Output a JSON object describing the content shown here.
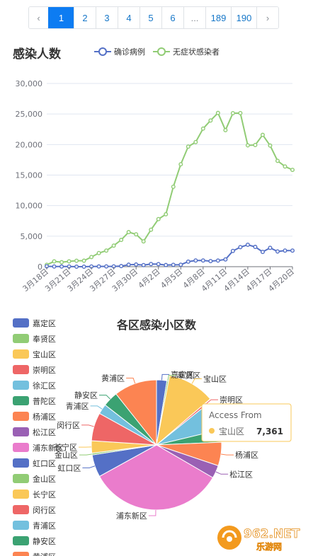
{
  "pagination": {
    "prev": "‹",
    "next": "›",
    "items": [
      "1",
      "2",
      "3",
      "4",
      "5",
      "6",
      "...",
      "189",
      "190"
    ],
    "active": "1"
  },
  "line_chart": {
    "title": "感染人数",
    "legend": [
      "确诊病例",
      "无症状感染者"
    ],
    "colors": {
      "confirmed": "#5470c6",
      "asymptomatic": "#91cc75"
    }
  },
  "pie_chart": {
    "title": "各区感染小区数",
    "legend": [
      "嘉定区",
      "奉贤区",
      "宝山区",
      "崇明区",
      "徐汇区",
      "普陀区",
      "杨浦区",
      "松江区",
      "浦东新区",
      "虹口区",
      "金山区",
      "长宁区",
      "闵行区",
      "青浦区",
      "静安区",
      "黄浦区"
    ],
    "tooltip": {
      "header": "Access From",
      "name": "宝山区",
      "value": "7,361"
    }
  },
  "chart_data": [
    {
      "type": "line",
      "title": "感染人数",
      "x": [
        "3月18日",
        "3月19日",
        "3月20日",
        "3月21日",
        "3月22日",
        "3月23日",
        "3月24日",
        "3月25日",
        "3月26日",
        "3月27日",
        "3月28日",
        "3月29日",
        "3月30日",
        "3月31日",
        "4月1日",
        "4月2日",
        "4月3日",
        "4月4日",
        "4月5日",
        "4月6日",
        "4月7日",
        "4月8日",
        "4月9日",
        "4月10日",
        "4月11日",
        "4月12日",
        "4月13日",
        "4月14日",
        "4月15日",
        "4月16日",
        "4月17日",
        "4月18日",
        "4月19日",
        "4月20日"
      ],
      "xticks": [
        "3月18日",
        "3月21日",
        "3月24日",
        "3月27日",
        "3月30日",
        "4月2日",
        "4月5日",
        "4月8日",
        "4月11日",
        "4月14日",
        "4月17日",
        "4月20日"
      ],
      "ylim": [
        0,
        30000
      ],
      "yticks": [
        "0",
        "5,000",
        "10,000",
        "15,000",
        "20,000",
        "25,000",
        "30,000"
      ],
      "grid": true,
      "legend_position": "top",
      "series": [
        {
          "name": "确诊病例",
          "color": "#5470c6",
          "values": [
            57,
            31,
            24,
            31,
            4,
            4,
            29,
            38,
            50,
            45,
            96,
            326,
            355,
            260,
            438,
            425,
            268,
            311,
            322,
            824,
            1015,
            1015,
            914,
            1006,
            1189,
            2573,
            3200,
            3590,
            3238,
            2417,
            3084,
            2494,
            2634,
            2634
          ]
        },
        {
          "name": "无症状感染者",
          "color": "#91cc75",
          "values": [
            309,
            865,
            734,
            865,
            977,
            979,
            1580,
            2231,
            2631,
            3450,
            4381,
            5656,
            5298,
            4144,
            6051,
            7788,
            8581,
            13086,
            16766,
            19660,
            20398,
            22609,
            23937,
            25173,
            22348,
            25141,
            25146,
            19872,
            19923,
            21582,
            19831,
            17332,
            16407,
            15861
          ]
        }
      ]
    },
    {
      "type": "pie",
      "title": "各区感染小区数",
      "categories": [
        "嘉定区",
        "奉贤区",
        "宝山区",
        "崇明区",
        "徐汇区",
        "普陀区",
        "杨浦区",
        "松江区",
        "浦东新区",
        "虹口区",
        "金山区",
        "长宁区",
        "闵行区",
        "青浦区",
        "静安区",
        "黄浦区"
      ],
      "values": [
        1760,
        270,
        7361,
        360,
        4800,
        2100,
        4000,
        2200,
        23000,
        3800,
        300,
        2100,
        4800,
        1700,
        2600,
        7300
      ],
      "colors": [
        "#5470c6",
        "#91cc75",
        "#fac858",
        "#ee6666",
        "#73c0de",
        "#3ba272",
        "#fc8452",
        "#9a60b4",
        "#ea7ccc",
        "#5470c6",
        "#91cc75",
        "#fac858",
        "#ee6666",
        "#73c0de",
        "#3ba272",
        "#fc8452"
      ],
      "legend_position": "left",
      "legend_shown_count": 15
    }
  ],
  "watermark": {
    "brand": "962.NET",
    "sub": "乐游网"
  }
}
